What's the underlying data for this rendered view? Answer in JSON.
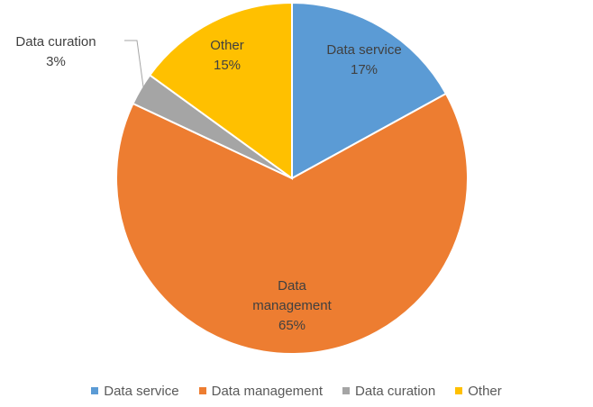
{
  "chart_data": {
    "type": "pie",
    "title": "",
    "slices": [
      {
        "label": "Data service",
        "value": 17,
        "percent_label": "17%",
        "color": "#5B9BD5"
      },
      {
        "label": "Data management",
        "value": 65,
        "percent_label": "65%",
        "color": "#ED7D31"
      },
      {
        "label": "Data curation",
        "value": 3,
        "percent_label": "3%",
        "color": "#A5A5A5"
      },
      {
        "label": "Other",
        "value": 15,
        "percent_label": "15%",
        "color": "#FFC000"
      }
    ],
    "legend": {
      "position": "bottom",
      "entries": [
        "Data service",
        "Data management",
        "Data curation",
        "Other"
      ]
    },
    "start_angle": "12 o'clock",
    "direction": "clockwise"
  }
}
